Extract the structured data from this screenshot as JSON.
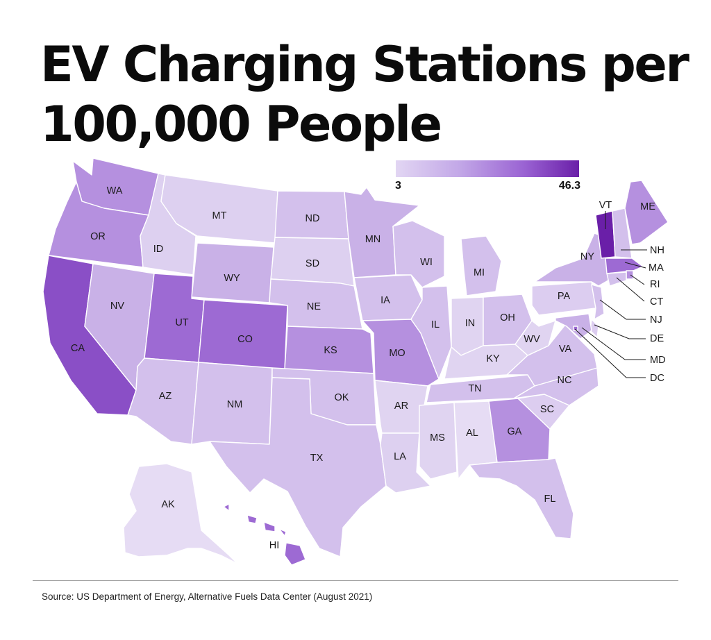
{
  "title": {
    "line1": "EV Charging Stations per",
    "line2": "100,000 People"
  },
  "legend": {
    "min_label": "3",
    "max_label": "46.3",
    "min_color": "#e2d6f3",
    "max_color": "#6a1fa8"
  },
  "colors": {
    "lightest": "#e6dcf4",
    "light": "#dccdf0",
    "light_mid": "#d1bdeb",
    "mid": "#c6acE6",
    "mid_dark": "#b38fde",
    "dark": "#9d6ad3",
    "darker": "#8a4fc6",
    "darkest": "#6a1fa8"
  },
  "states": {
    "WA": "WA",
    "OR": "OR",
    "CA": "CA",
    "ID": "ID",
    "NV": "NV",
    "MT": "MT",
    "WY": "WY",
    "UT": "UT",
    "AZ": "AZ",
    "CO": "CO",
    "NM": "NM",
    "ND": "ND",
    "SD": "SD",
    "NE": "NE",
    "KS": "KS",
    "OK": "OK",
    "TX": "TX",
    "MN": "MN",
    "IA": "IA",
    "MO": "MO",
    "AR": "AR",
    "LA": "LA",
    "WI": "WI",
    "IL": "IL",
    "MI": "MI",
    "IN": "IN",
    "OH": "OH",
    "KY": "KY",
    "TN": "TN",
    "MS": "MS",
    "AL": "AL",
    "GA": "GA",
    "FL": "FL",
    "SC": "SC",
    "NC": "NC",
    "VA": "VA",
    "WV": "WV",
    "PA": "PA",
    "NY": "NY",
    "VT": "VT",
    "ME": "ME",
    "NH": "NH",
    "MA": "MA",
    "RI": "RI",
    "CT": "CT",
    "NJ": "NJ",
    "DE": "DE",
    "MD": "MD",
    "DC": "DC",
    "AK": "AK",
    "HI": "HI"
  },
  "source": "Source: US Department of Energy, Alternative Fuels Data Center (August 2021)"
}
